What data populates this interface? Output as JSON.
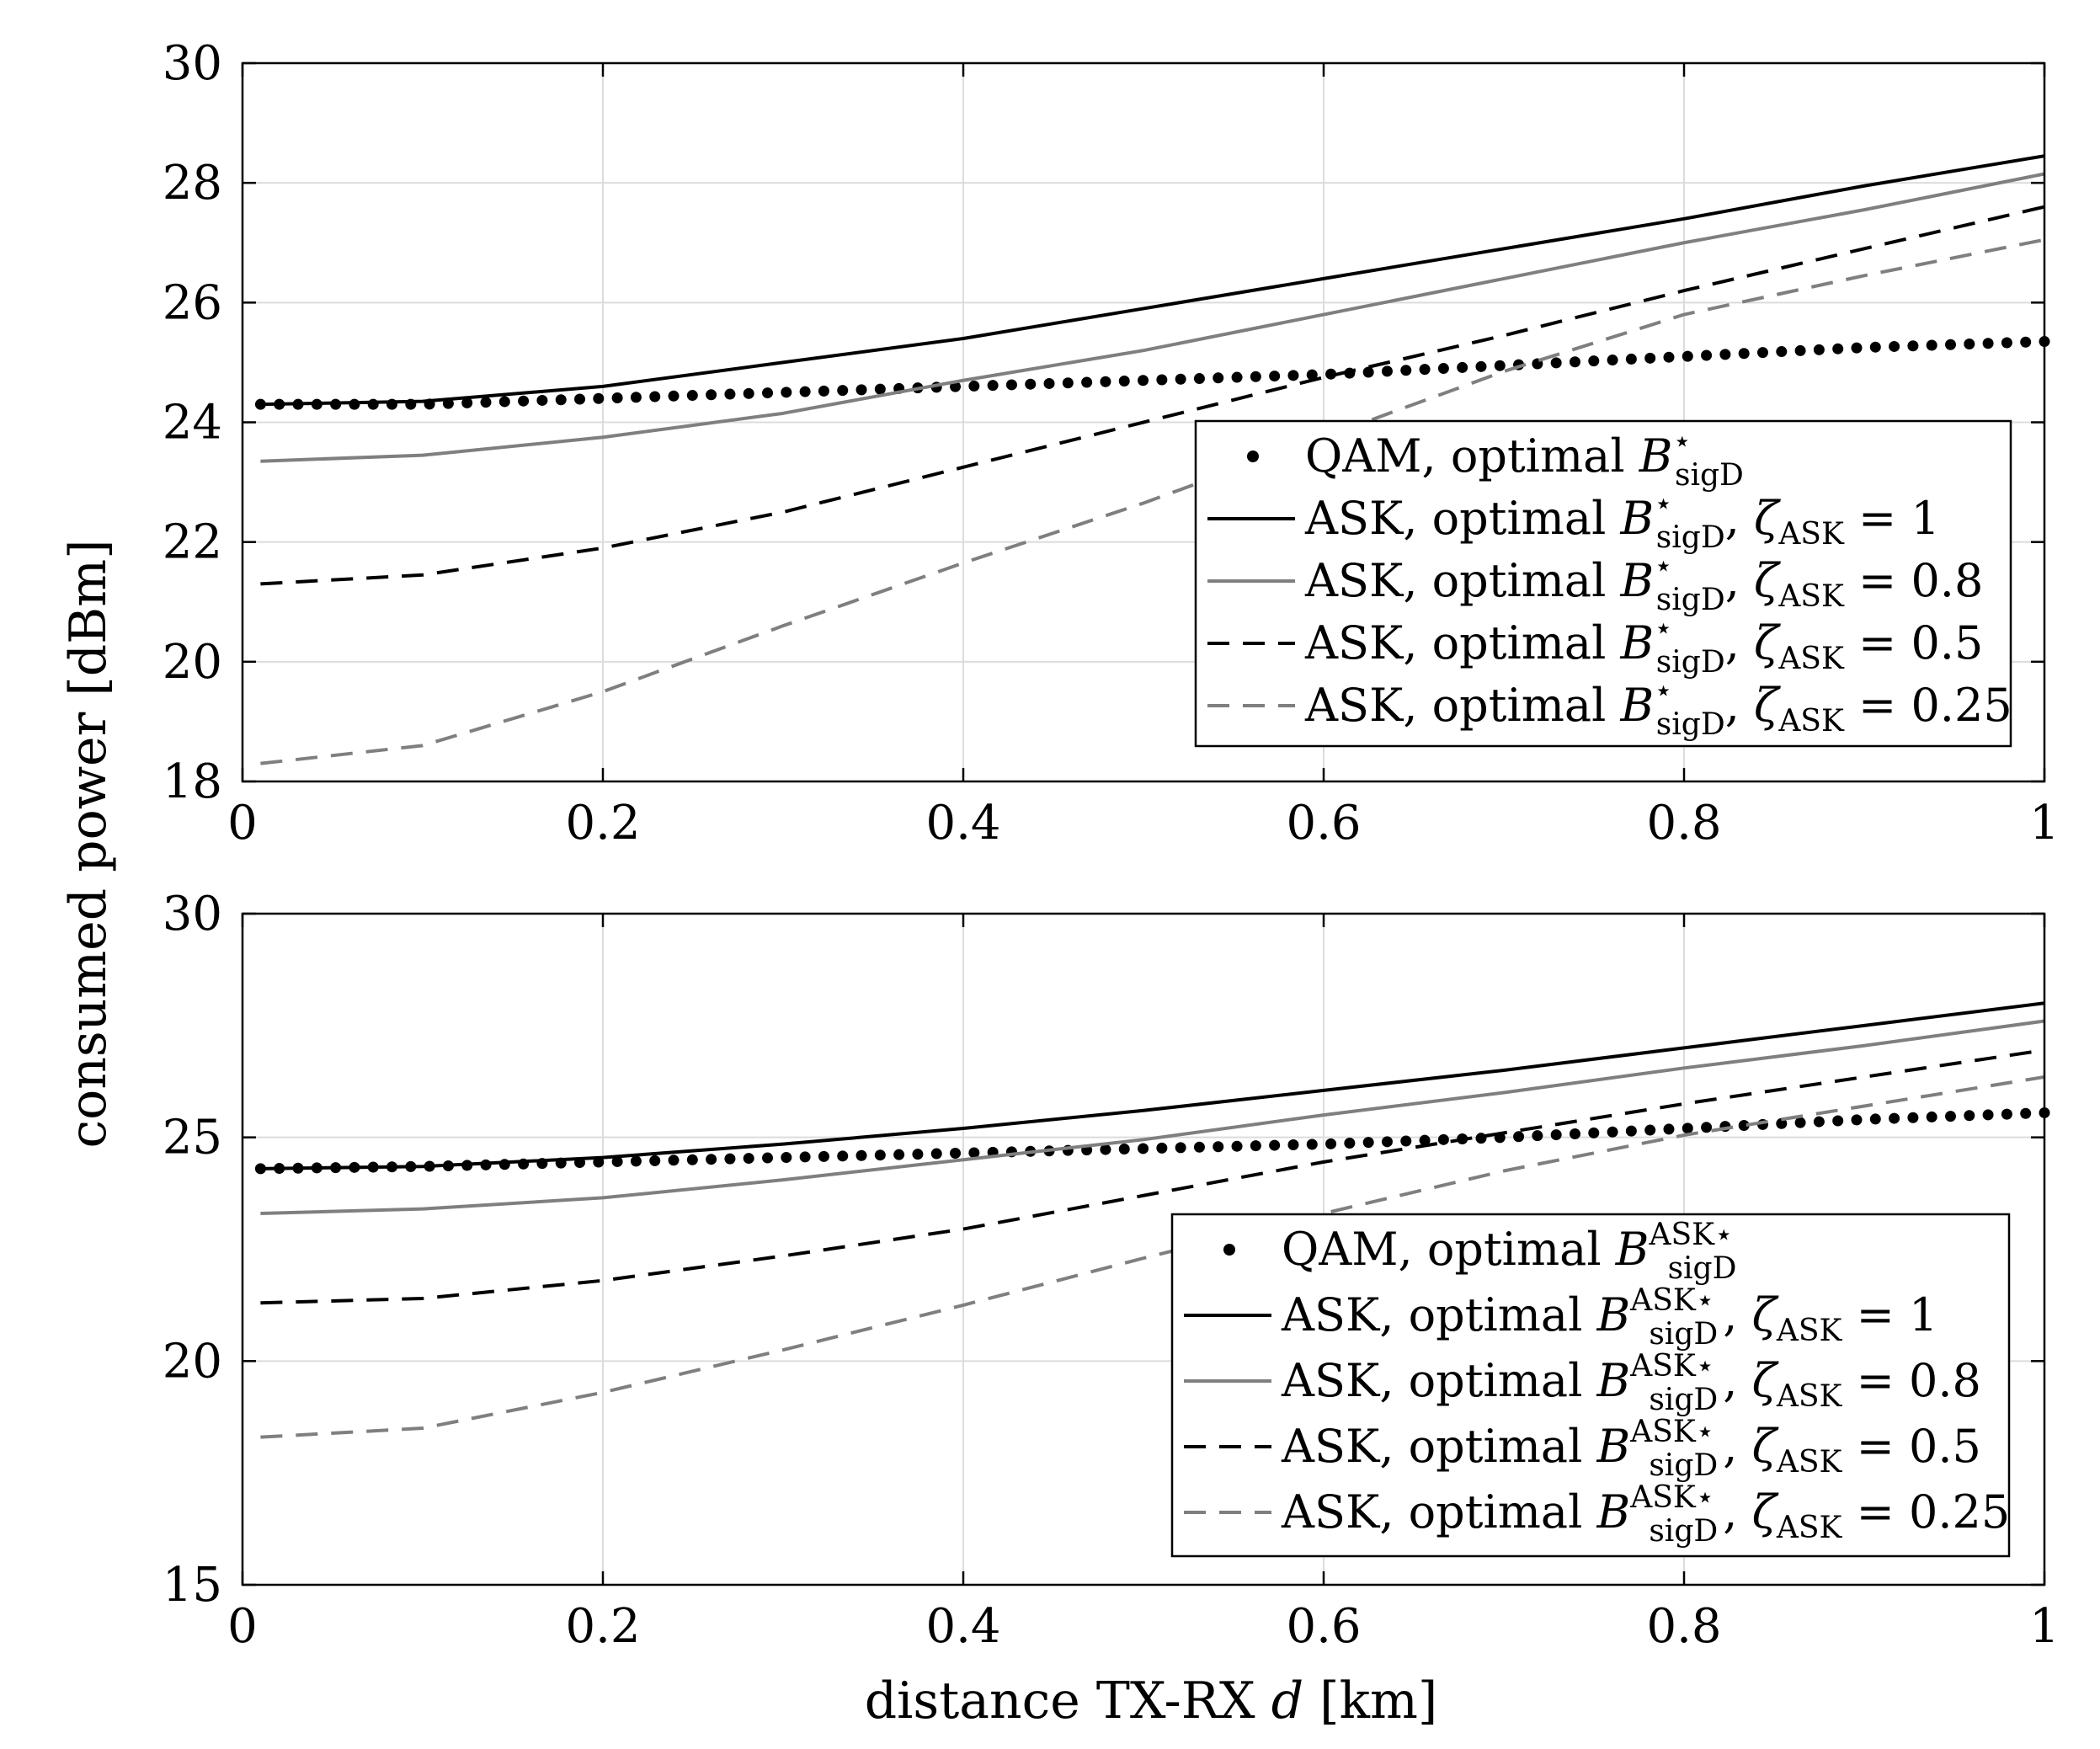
{
  "figure": {
    "ylabel": "consumed power [dBm]",
    "xlabel_prefix": "distance TX-RX ",
    "xlabel_var": "d",
    "xlabel_unit": " [km]"
  },
  "colors": {
    "black": "#000000",
    "gray": "#7f7f7f",
    "grid": "#dcdcdc"
  },
  "chart_data": [
    {
      "type": "line",
      "panel": "top",
      "xlim": [
        0,
        1
      ],
      "ylim": [
        18,
        30
      ],
      "xticks": [
        0,
        0.2,
        0.4,
        0.6,
        0.8,
        1
      ],
      "xtick_labels": [
        "0",
        "0.2",
        "0.4",
        "0.6",
        "0.8",
        "1"
      ],
      "yticks": [
        18,
        20,
        22,
        24,
        26,
        28,
        30
      ],
      "ytick_labels": [
        "18",
        "20",
        "22",
        "24",
        "26",
        "28",
        "30"
      ],
      "grid": true,
      "legend_position": "lower-right",
      "x": [
        0.01,
        0.1,
        0.2,
        0.3,
        0.4,
        0.5,
        0.6,
        0.7,
        0.8,
        0.9,
        1.0
      ],
      "series": [
        {
          "name": "QAM, optimal B*sigD",
          "legend_main": "QAM, optimal ",
          "legend_sup": "⋆",
          "legend_sub": "sigD",
          "legend_tail": "",
          "style": "dots",
          "color": "#000000",
          "values": [
            24.3,
            24.3,
            24.4,
            24.5,
            24.6,
            24.7,
            24.8,
            24.95,
            25.1,
            25.25,
            25.35
          ]
        },
        {
          "name": "ASK, optimal B*sigD, ζASK = 1",
          "legend_main": "ASK, optimal ",
          "legend_sup": "⋆",
          "legend_sub": "sigD",
          "legend_tail": ", ζ",
          "legend_tail_sub": "ASK",
          "legend_tail_eq": " = 1",
          "style": "solid",
          "color": "#000000",
          "values": [
            24.3,
            24.35,
            24.6,
            25.0,
            25.4,
            25.9,
            26.4,
            26.9,
            27.4,
            27.95,
            28.45
          ]
        },
        {
          "name": "ASK, optimal B*sigD, ζASK = 0.8",
          "legend_main": "ASK, optimal ",
          "legend_sup": "⋆",
          "legend_sub": "sigD",
          "legend_tail": ", ζ",
          "legend_tail_sub": "ASK",
          "legend_tail_eq": " = 0.8",
          "style": "solid",
          "color": "#7f7f7f",
          "values": [
            23.35,
            23.45,
            23.75,
            24.15,
            24.7,
            25.2,
            25.8,
            26.4,
            27.0,
            27.55,
            28.15
          ]
        },
        {
          "name": "ASK, optimal B*sigD, ζASK = 0.5",
          "legend_main": "ASK, optimal ",
          "legend_sup": "⋆",
          "legend_sub": "sigD",
          "legend_tail": ", ζ",
          "legend_tail_sub": "ASK",
          "legend_tail_eq": " = 0.5",
          "style": "dashed",
          "color": "#000000",
          "values": [
            21.3,
            21.45,
            21.9,
            22.5,
            23.25,
            24.0,
            24.75,
            25.45,
            26.2,
            26.9,
            27.6
          ]
        },
        {
          "name": "ASK, optimal B*sigD, ζASK = 0.25",
          "legend_main": "ASK, optimal ",
          "legend_sup": "⋆",
          "legend_sub": "sigD",
          "legend_tail": ", ζ",
          "legend_tail_sub": "ASK",
          "legend_tail_eq": " = 0.25",
          "style": "dashed",
          "color": "#7f7f7f",
          "values": [
            18.3,
            18.6,
            19.5,
            20.6,
            21.65,
            22.65,
            23.75,
            24.85,
            25.8,
            26.45,
            27.05
          ]
        }
      ]
    },
    {
      "type": "line",
      "panel": "bottom",
      "xlim": [
        0,
        1
      ],
      "ylim": [
        15,
        30
      ],
      "xticks": [
        0,
        0.2,
        0.4,
        0.6,
        0.8,
        1
      ],
      "xtick_labels": [
        "0",
        "0.2",
        "0.4",
        "0.6",
        "0.8",
        "1"
      ],
      "yticks": [
        15,
        20,
        25,
        30
      ],
      "ytick_labels": [
        "15",
        "20",
        "25",
        "30"
      ],
      "grid": true,
      "legend_position": "lower-right",
      "x": [
        0.01,
        0.1,
        0.2,
        0.3,
        0.4,
        0.5,
        0.6,
        0.7,
        0.8,
        0.9,
        1.0
      ],
      "series": [
        {
          "name": "QAM, optimal B^ASK*sigD",
          "legend_main": "QAM, optimal ",
          "legend_sup": "ASK⋆",
          "legend_sub": "sigD",
          "legend_tail": "",
          "style": "dots",
          "color": "#000000",
          "values": [
            24.3,
            24.35,
            24.45,
            24.55,
            24.65,
            24.75,
            24.85,
            25.0,
            25.2,
            25.4,
            25.55
          ]
        },
        {
          "name": "ASK, optimal B^ASK*sigD, ζASK = 1",
          "legend_main": "ASK, optimal ",
          "legend_sup": "ASK⋆",
          "legend_sub": "sigD",
          "legend_tail": ", ζ",
          "legend_tail_sub": "ASK",
          "legend_tail_eq": " = 1",
          "style": "solid",
          "color": "#000000",
          "values": [
            24.3,
            24.35,
            24.55,
            24.85,
            25.2,
            25.6,
            26.05,
            26.5,
            27.0,
            27.5,
            28.0
          ]
        },
        {
          "name": "ASK, optimal B^ASK*sigD, ζASK = 0.8",
          "legend_main": "ASK, optimal ",
          "legend_sup": "ASK⋆",
          "legend_sub": "sigD",
          "legend_tail": ", ζ",
          "legend_tail_sub": "ASK",
          "legend_tail_eq": " = 0.8",
          "style": "solid",
          "color": "#7f7f7f",
          "values": [
            23.3,
            23.4,
            23.65,
            24.05,
            24.5,
            24.95,
            25.5,
            26.0,
            26.55,
            27.05,
            27.6
          ]
        },
        {
          "name": "ASK, optimal B^ASK*sigD, ζASK = 0.5",
          "legend_main": "ASK, optimal ",
          "legend_sup": "ASK⋆",
          "legend_sub": "sigD",
          "legend_tail": ", ζ",
          "legend_tail_sub": "ASK",
          "legend_tail_eq": " = 0.5",
          "style": "dashed",
          "color": "#000000",
          "values": [
            21.3,
            21.4,
            21.8,
            22.35,
            22.95,
            23.7,
            24.45,
            25.1,
            25.75,
            26.35,
            26.95
          ]
        },
        {
          "name": "ASK, optimal B^ASK*sigD, ζASK = 0.25",
          "legend_main": "ASK, optimal ",
          "legend_sup": "ASK⋆",
          "legend_sub": "sigD",
          "legend_tail": ", ζ",
          "legend_tail_sub": "ASK",
          "legend_tail_eq": " = 0.25",
          "style": "dashed",
          "color": "#7f7f7f",
          "values": [
            18.3,
            18.5,
            19.3,
            20.25,
            21.25,
            22.3,
            23.3,
            24.25,
            25.05,
            25.7,
            26.35
          ]
        }
      ]
    }
  ]
}
